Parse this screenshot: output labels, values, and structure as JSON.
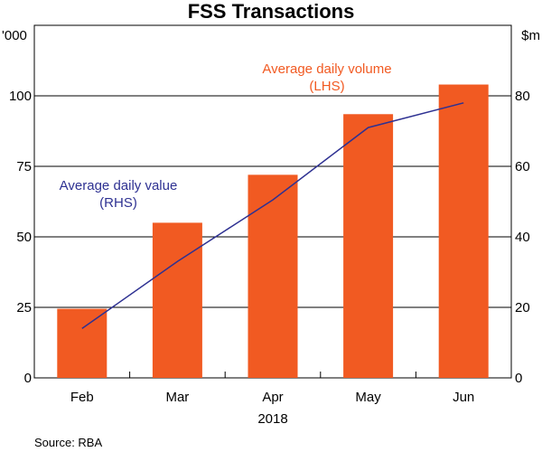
{
  "chart_data": {
    "type": "bar+line",
    "title": "FSS Transactions",
    "categories": [
      "Feb",
      "Mar",
      "Apr",
      "May",
      "Jun"
    ],
    "year_label": "2018",
    "left_axis": {
      "unit": "'000",
      "ylim": [
        0,
        125
      ],
      "ticks": [
        0,
        25,
        50,
        75,
        100
      ]
    },
    "right_axis": {
      "unit": "$m",
      "ylim": [
        0,
        100
      ],
      "ticks": [
        0,
        20,
        40,
        60,
        80
      ]
    },
    "series": [
      {
        "name": "Average daily volume",
        "axis_note": "(LHS)",
        "type": "bar",
        "axis": "left",
        "color": "#f15a22",
        "values": [
          24.5,
          55,
          72,
          93.5,
          104
        ]
      },
      {
        "name": "Average daily value",
        "axis_note": "(RHS)",
        "type": "line",
        "axis": "right",
        "color": "#2e3192",
        "values": [
          14,
          33,
          50.5,
          71,
          78
        ]
      }
    ],
    "source": "Source:   RBA"
  }
}
